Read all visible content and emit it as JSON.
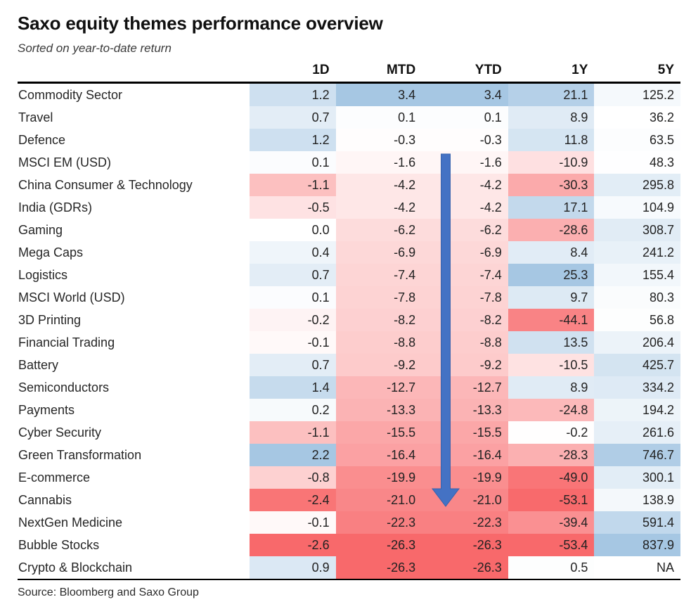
{
  "title": "Saxo equity themes performance overview",
  "subtitle": "Sorted on year-to-date return",
  "source_note": "Source: Bloomberg and Saxo Group",
  "colors": {
    "heatmap_positive": "#a6c7e3",
    "heatmap_negative": "#f8696b",
    "heatmap_neutral": "#ffffff",
    "arrow_blue": "#4472c4",
    "rule_black": "#000000"
  },
  "chart_data": {
    "type": "heatmap",
    "title": "Saxo equity themes performance overview",
    "subtitle": "Sorted on year-to-date return",
    "columns": [
      "1D",
      "MTD",
      "YTD",
      "1Y",
      "5Y"
    ],
    "row_header": "",
    "rows": [
      {
        "label": "Commodity Sector",
        "values": [
          "1.2",
          "3.4",
          "3.4",
          "21.1",
          "125.2"
        ]
      },
      {
        "label": "Travel",
        "values": [
          "0.7",
          "0.1",
          "0.1",
          "8.9",
          "36.2"
        ]
      },
      {
        "label": "Defence",
        "values": [
          "1.2",
          "-0.3",
          "-0.3",
          "11.8",
          "63.5"
        ]
      },
      {
        "label": "MSCI EM (USD)",
        "values": [
          "0.1",
          "-1.6",
          "-1.6",
          "-10.9",
          "48.3"
        ]
      },
      {
        "label": "China Consumer & Technology",
        "values": [
          "-1.1",
          "-4.2",
          "-4.2",
          "-30.3",
          "295.8"
        ]
      },
      {
        "label": "India (GDRs)",
        "values": [
          "-0.5",
          "-4.2",
          "-4.2",
          "17.1",
          "104.9"
        ]
      },
      {
        "label": "Gaming",
        "values": [
          "0.0",
          "-6.2",
          "-6.2",
          "-28.6",
          "308.7"
        ]
      },
      {
        "label": "Mega Caps",
        "values": [
          "0.4",
          "-6.9",
          "-6.9",
          "8.4",
          "241.2"
        ]
      },
      {
        "label": "Logistics",
        "values": [
          "0.7",
          "-7.4",
          "-7.4",
          "25.3",
          "155.4"
        ]
      },
      {
        "label": "MSCI World (USD)",
        "values": [
          "0.1",
          "-7.8",
          "-7.8",
          "9.7",
          "80.3"
        ]
      },
      {
        "label": "3D Printing",
        "values": [
          "-0.2",
          "-8.2",
          "-8.2",
          "-44.1",
          "56.8"
        ]
      },
      {
        "label": "Financial Trading",
        "values": [
          "-0.1",
          "-8.8",
          "-8.8",
          "13.5",
          "206.4"
        ]
      },
      {
        "label": "Battery",
        "values": [
          "0.7",
          "-9.2",
          "-9.2",
          "-10.5",
          "425.7"
        ]
      },
      {
        "label": "Semiconductors",
        "values": [
          "1.4",
          "-12.7",
          "-12.7",
          "8.9",
          "334.2"
        ]
      },
      {
        "label": "Payments",
        "values": [
          "0.2",
          "-13.3",
          "-13.3",
          "-24.8",
          "194.2"
        ]
      },
      {
        "label": "Cyber Security",
        "values": [
          "-1.1",
          "-15.5",
          "-15.5",
          "-0.2",
          "261.6"
        ]
      },
      {
        "label": "Green Transformation",
        "values": [
          "2.2",
          "-16.4",
          "-16.4",
          "-28.3",
          "746.7"
        ]
      },
      {
        "label": "E-commerce",
        "values": [
          "-0.8",
          "-19.9",
          "-19.9",
          "-49.0",
          "300.1"
        ]
      },
      {
        "label": "Cannabis",
        "values": [
          "-2.4",
          "-21.0",
          "-21.0",
          "-53.1",
          "138.9"
        ]
      },
      {
        "label": "NextGen Medicine",
        "values": [
          "-0.1",
          "-22.3",
          "-22.3",
          "-39.4",
          "591.4"
        ]
      },
      {
        "label": "Bubble Stocks",
        "values": [
          "-2.6",
          "-26.3",
          "-26.3",
          "-53.4",
          "837.9"
        ]
      },
      {
        "label": "Crypto & Blockchain",
        "values": [
          "0.9",
          "-26.3",
          "-26.3",
          "0.5",
          "NA"
        ]
      }
    ],
    "annotation_arrow": {
      "direction": "down",
      "column": "YTD",
      "from_row": "MSCI EM (USD)",
      "to_row": "Cannabis",
      "color": "#4472c4"
    },
    "legend": "cell background: blue = positive / column max, white = neutral, red = negative / column min"
  }
}
